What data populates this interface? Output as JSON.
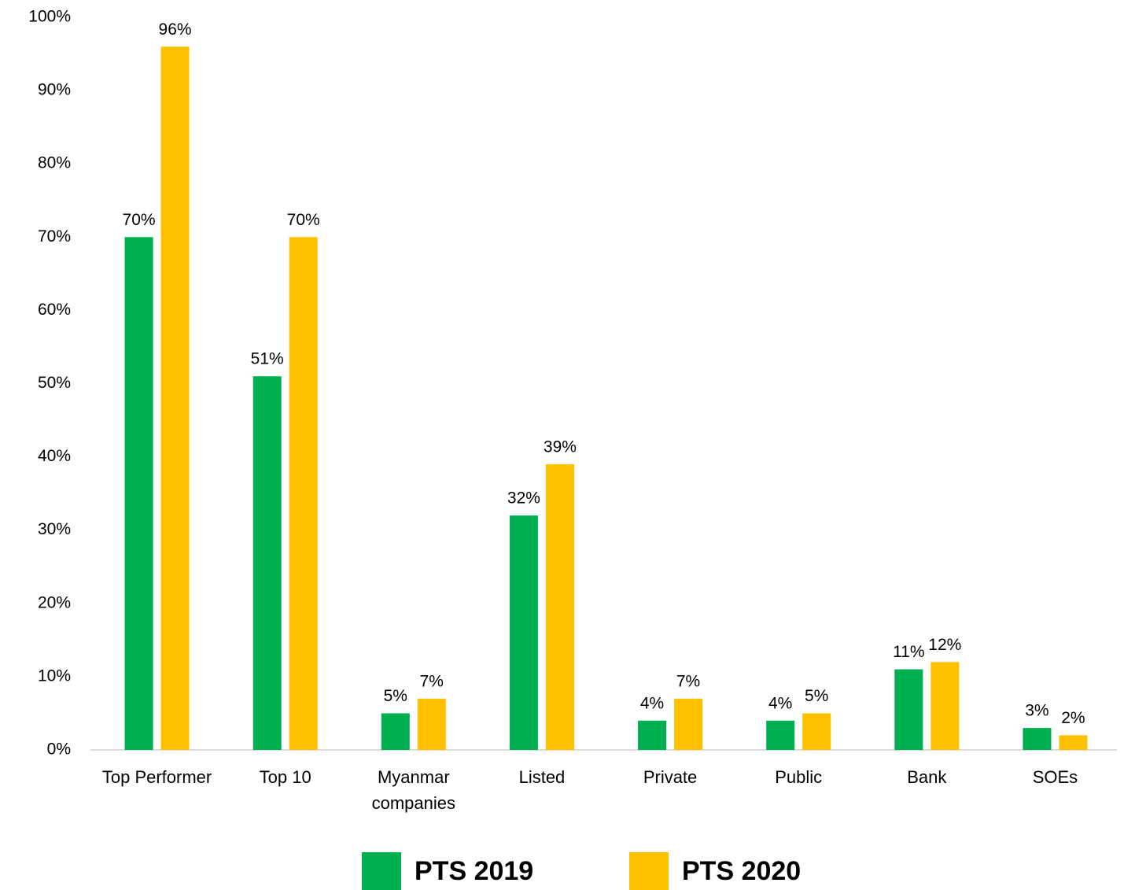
{
  "chart_data": {
    "type": "bar",
    "categories": [
      "Top Performer",
      "Top 10",
      "Myanmar companies",
      "Listed",
      "Private",
      "Public",
      "Bank",
      "SOEs"
    ],
    "series": [
      {
        "name": "PTS 2019",
        "color": "#00b050",
        "values": [
          70,
          51,
          5,
          32,
          4,
          4,
          11,
          3
        ],
        "value_labels": [
          "70%",
          "51%",
          "5%",
          "32%",
          "4%",
          "4%",
          "11%",
          "3%"
        ]
      },
      {
        "name": "PTS 2020",
        "color": "#ffc000",
        "values": [
          96,
          70,
          7,
          39,
          7,
          5,
          12,
          2
        ],
        "value_labels": [
          "96%",
          "70%",
          "7%",
          "39%",
          "7%",
          "5%",
          "12%",
          "2%"
        ]
      }
    ],
    "ylim": [
      0,
      100
    ],
    "yticks": [
      {
        "value": 0,
        "label": "0%"
      },
      {
        "value": 10,
        "label": "10%"
      },
      {
        "value": 20,
        "label": "20%"
      },
      {
        "value": 30,
        "label": "30%"
      },
      {
        "value": 40,
        "label": "40%"
      },
      {
        "value": 50,
        "label": "50%"
      },
      {
        "value": 60,
        "label": "60%"
      },
      {
        "value": 70,
        "label": "70%"
      },
      {
        "value": 80,
        "label": "80%"
      },
      {
        "value": 90,
        "label": "90%"
      },
      {
        "value": 100,
        "label": "100%"
      }
    ],
    "grid": false,
    "legend": "bottom"
  }
}
